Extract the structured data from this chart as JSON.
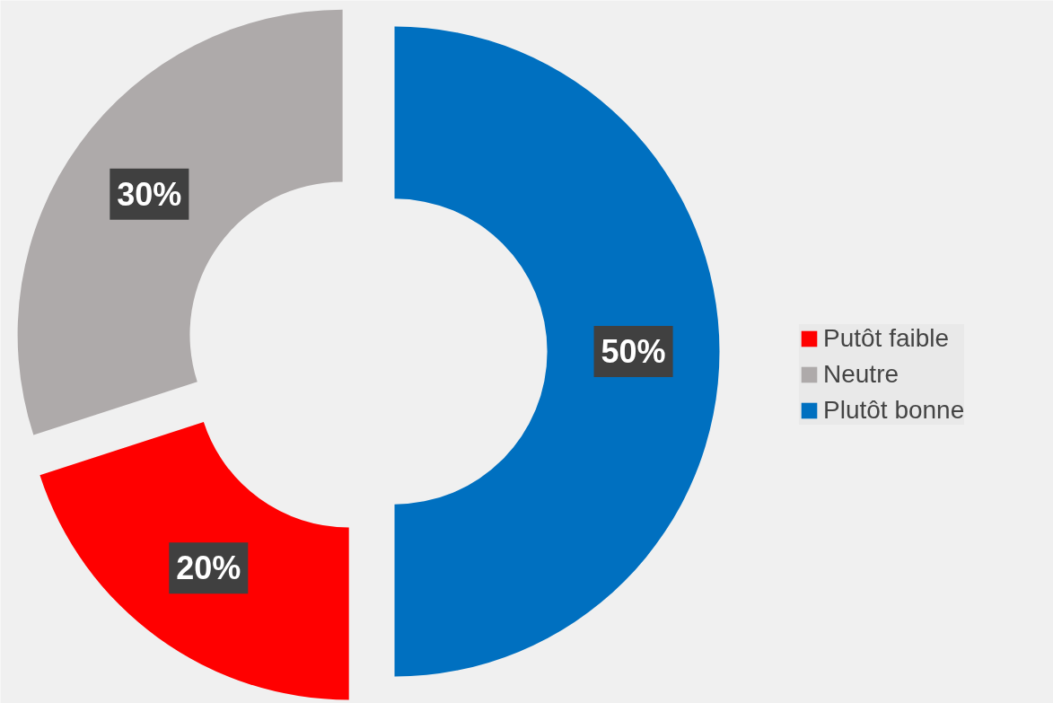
{
  "chart_data": {
    "type": "donut",
    "categories": [
      "Putôt faible",
      "Neutre",
      "Plutôt bonne"
    ],
    "values": [
      20,
      30,
      50
    ],
    "colors": [
      "#ff0000",
      "#aeaaaa",
      "#0070c0"
    ],
    "value_labels": [
      "20%",
      "30%",
      "50%"
    ],
    "legend": "right"
  }
}
